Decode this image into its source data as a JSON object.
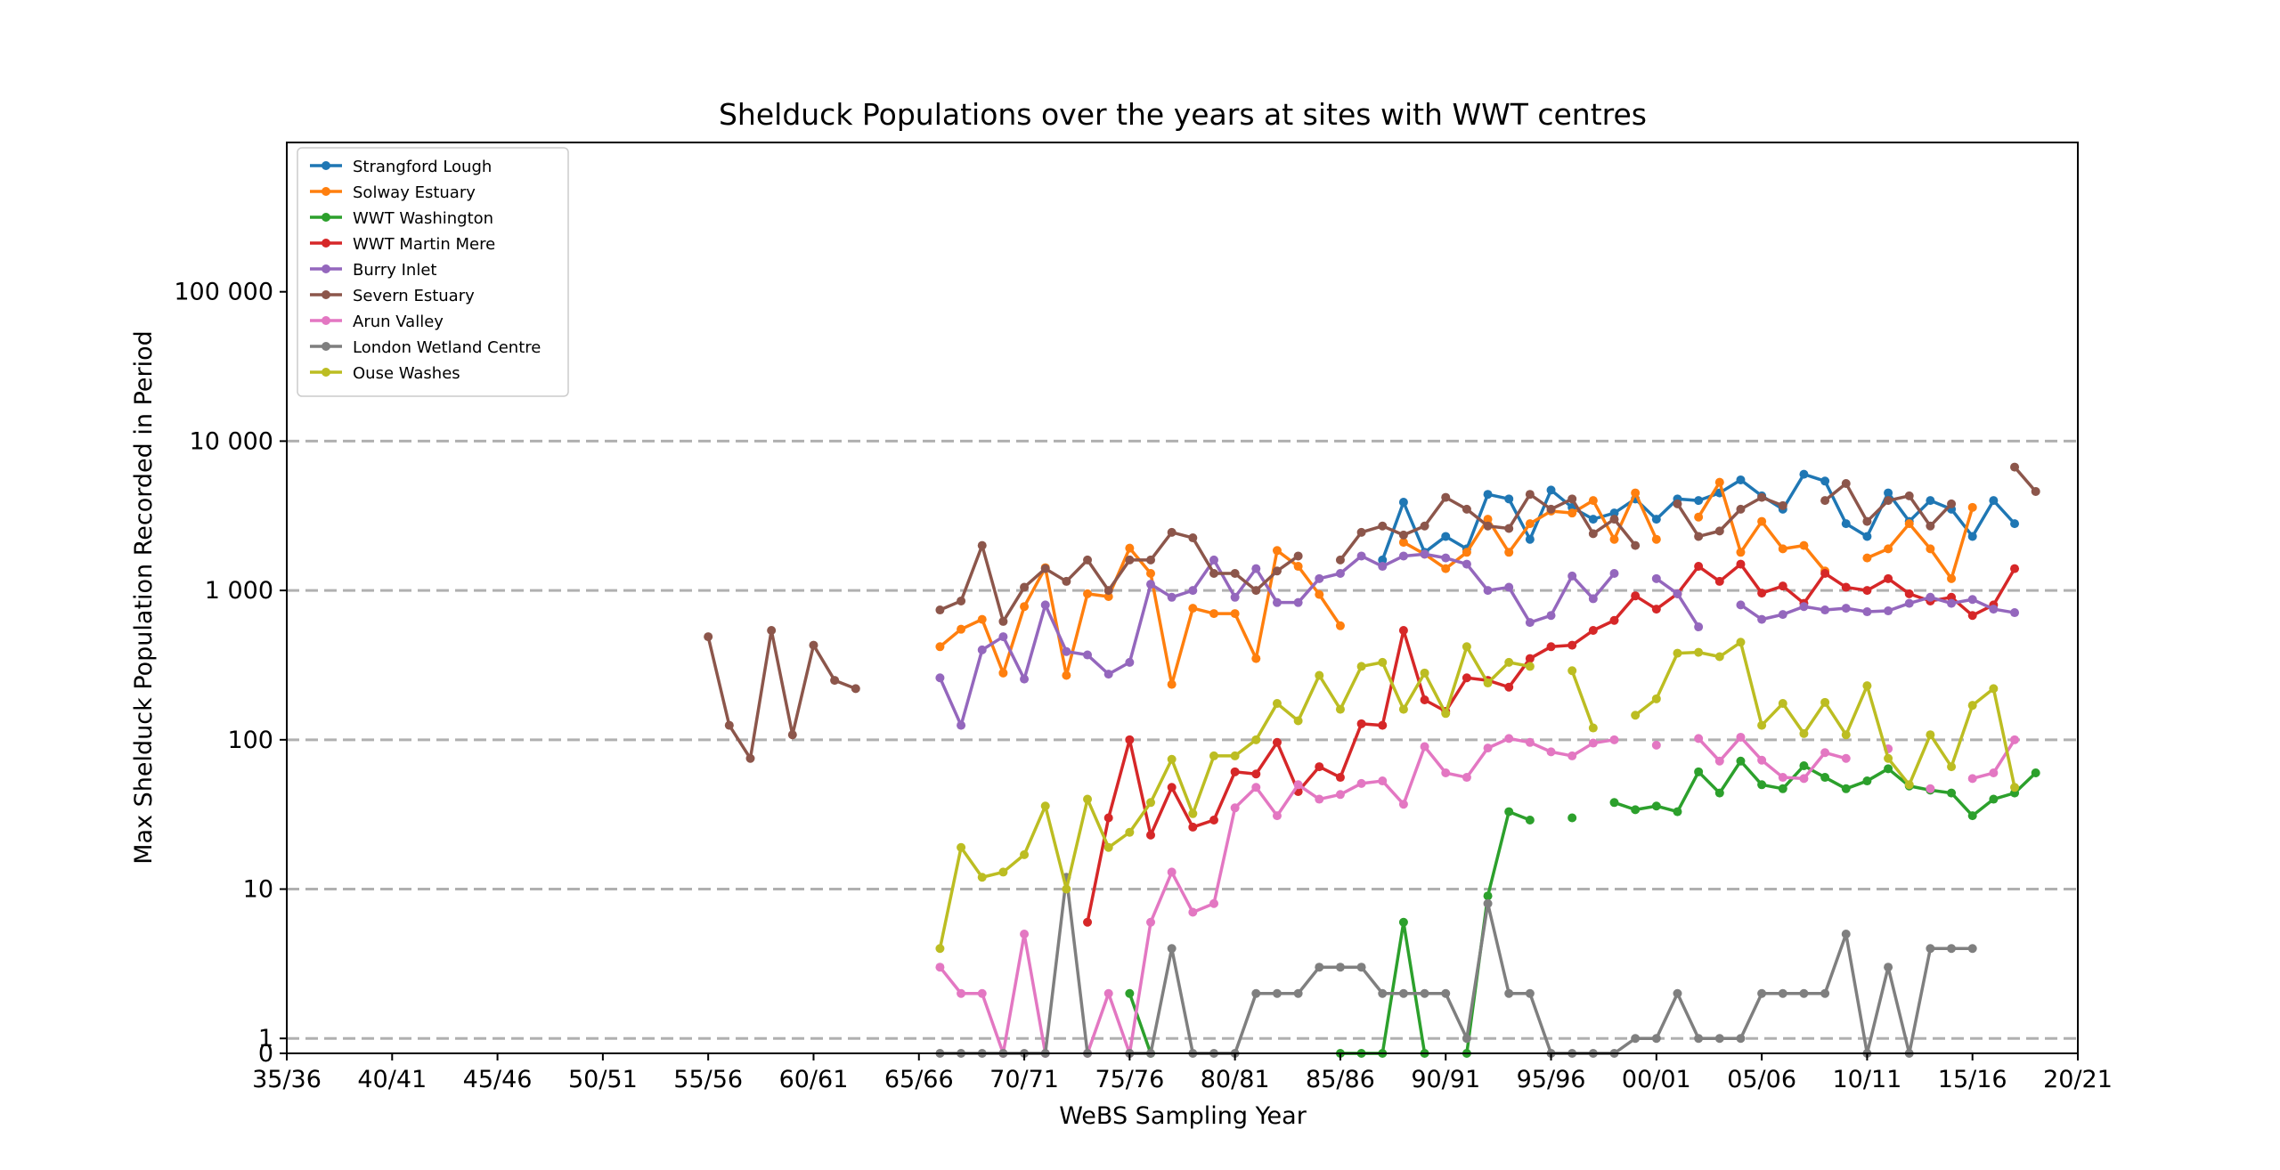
{
  "chart_data": {
    "type": "line",
    "title": "Shelduck Populations over the years at sites with WWT centres",
    "xlabel": "WeBS Sampling Year",
    "ylabel": "Max Shelduck Population Recorded in Period",
    "xlim": [
      1935,
      2020
    ],
    "ylim": [
      0,
      100000
    ],
    "yscale": "symlog",
    "x_ticks": [
      1935,
      1940,
      1945,
      1950,
      1955,
      1960,
      1965,
      1970,
      1975,
      1980,
      1985,
      1990,
      1995,
      2000,
      2005,
      2010,
      2015,
      2020
    ],
    "x_tick_labels": [
      "35/36",
      "40/41",
      "45/46",
      "50/51",
      "55/56",
      "60/61",
      "65/66",
      "70/71",
      "75/76",
      "80/81",
      "85/86",
      "90/91",
      "95/96",
      "00/01",
      "05/06",
      "10/11",
      "15/16",
      "20/21"
    ],
    "y_ticks": [
      0,
      1,
      10,
      100,
      1000,
      10000,
      100000
    ],
    "y_tick_labels": [
      "0",
      "1",
      "10",
      "100",
      "1 000",
      "10 000",
      "100 000"
    ],
    "grid": "horizontal dashed",
    "legend_position": "top-left",
    "series": [
      {
        "name": "Strangford Lough",
        "color": "#1f77b4",
        "start": 1987,
        "values": [
          1600,
          3900,
          1800,
          2300,
          1900,
          4400,
          4100,
          2200,
          4700,
          3600,
          3000,
          3300,
          4100,
          3000,
          4100,
          4000,
          4500,
          5500,
          4300,
          3500,
          6000,
          5400,
          2800,
          2300,
          4500,
          2900,
          4000,
          3500,
          2300,
          4000,
          2800
        ]
      },
      {
        "name": "Solway Estuary",
        "color": "#ff7f0e",
        "start": 1966,
        "values": [
          420,
          550,
          640,
          280,
          780,
          1420,
          270,
          950,
          910,
          1920,
          1300,
          235,
          760,
          700,
          700,
          350,
          1850,
          1450,
          940,
          580,
          null,
          null,
          2100,
          1750,
          1400,
          1800,
          3000,
          1800,
          2800,
          3400,
          3300,
          4000,
          2200,
          4500,
          2200,
          null,
          3100,
          5300,
          1800,
          2900,
          1900,
          2000,
          1350,
          null,
          1650,
          1900,
          2800,
          1900,
          1200,
          3600
        ]
      },
      {
        "name": "WWT Washington",
        "color": "#2ca02c",
        "start": 1975,
        "values": [
          2,
          0,
          null,
          null,
          null,
          null,
          null,
          null,
          null,
          null,
          0,
          0,
          0,
          6,
          0,
          null,
          0,
          9,
          33,
          29,
          null,
          30,
          null,
          38,
          34,
          36,
          33,
          61,
          44,
          72,
          50,
          47,
          67,
          56,
          47,
          53,
          64,
          49,
          46,
          44,
          31,
          40,
          44,
          60
        ]
      },
      {
        "name": "WWT Martin Mere",
        "color": "#d62728",
        "start": 1973,
        "values": [
          6,
          30,
          100,
          23,
          48,
          26,
          29,
          61,
          59,
          96,
          45,
          66,
          56,
          128,
          125,
          540,
          185,
          155,
          260,
          250,
          225,
          350,
          420,
          430,
          540,
          630,
          920,
          750,
          950,
          1450,
          1150,
          1500,
          960,
          1070,
          820,
          1300,
          1050,
          1000,
          1200,
          950,
          850,
          900,
          680,
          800,
          1400
        ]
      },
      {
        "name": "Burry Inlet",
        "color": "#9467bd",
        "start": 1966,
        "values": [
          260,
          125,
          400,
          490,
          255,
          800,
          390,
          370,
          275,
          330,
          1100,
          900,
          1000,
          1600,
          900,
          1400,
          830,
          830,
          1200,
          1300,
          1700,
          1450,
          1700,
          1750,
          1650,
          1500,
          1000,
          1050,
          610,
          680,
          1250,
          880,
          1300,
          null,
          1200,
          950,
          570,
          null,
          800,
          640,
          690,
          780,
          740,
          760,
          720,
          730,
          820,
          900,
          820,
          870,
          750,
          710
        ]
      },
      {
        "name": "Severn Estuary",
        "color": "#8c564b",
        "start": 1955,
        "values": [
          490,
          125,
          75,
          540,
          108,
          430,
          250,
          220,
          null,
          null,
          null,
          740,
          850,
          2000,
          620,
          1050,
          1400,
          1150,
          1600,
          1000,
          1600,
          1600,
          2450,
          2250,
          1300,
          1300,
          1000,
          1350,
          1700,
          null,
          1600,
          2450,
          2700,
          2350,
          2700,
          4200,
          3500,
          2700,
          2600,
          4400,
          3500,
          4100,
          2400,
          3000,
          2000,
          null,
          3800,
          2300,
          2500,
          3500,
          4200,
          3700,
          null,
          4000,
          5200,
          2900,
          4000,
          4300,
          2700,
          3800,
          null,
          null,
          6700,
          4600
        ]
      },
      {
        "name": "Arun Valley",
        "color": "#e377c2",
        "start": 1966,
        "values": [
          3,
          2,
          2,
          0,
          5,
          0,
          null,
          0,
          2,
          0,
          6,
          13,
          7,
          8,
          35,
          48,
          31,
          50,
          40,
          43,
          51,
          53,
          37,
          90,
          60,
          56,
          88,
          102,
          96,
          83,
          78,
          95,
          100,
          null,
          92,
          null,
          102,
          72,
          104,
          73,
          56,
          55,
          82,
          75,
          null,
          87,
          null,
          47,
          null,
          55,
          60,
          100
        ]
      },
      {
        "name": "London Wetland Centre",
        "color": "#7f7f7f",
        "start": 1966,
        "values": [
          0,
          0,
          0,
          0,
          0,
          0,
          12,
          0,
          null,
          0,
          0,
          4,
          0,
          0,
          0,
          2,
          2,
          2,
          3,
          3,
          3,
          2,
          2,
          2,
          2,
          1,
          8,
          2,
          2,
          0,
          0,
          0,
          0,
          1,
          1,
          2,
          1,
          1,
          1,
          2,
          2,
          2,
          2,
          5,
          0,
          3,
          0,
          4,
          4,
          4
        ]
      },
      {
        "name": "Ouse Washes",
        "color": "#bcbd22",
        "start": 1966,
        "values": [
          4,
          19,
          12,
          13,
          17,
          36,
          10,
          40,
          19,
          24,
          38,
          74,
          32,
          78,
          78,
          100,
          175,
          134,
          270,
          160,
          310,
          330,
          160,
          280,
          150,
          420,
          240,
          330,
          310,
          null,
          290,
          120,
          null,
          146,
          188,
          380,
          385,
          360,
          450,
          125,
          175,
          110,
          178,
          108,
          230,
          75,
          50,
          108,
          66,
          170,
          220,
          48
        ]
      }
    ]
  }
}
